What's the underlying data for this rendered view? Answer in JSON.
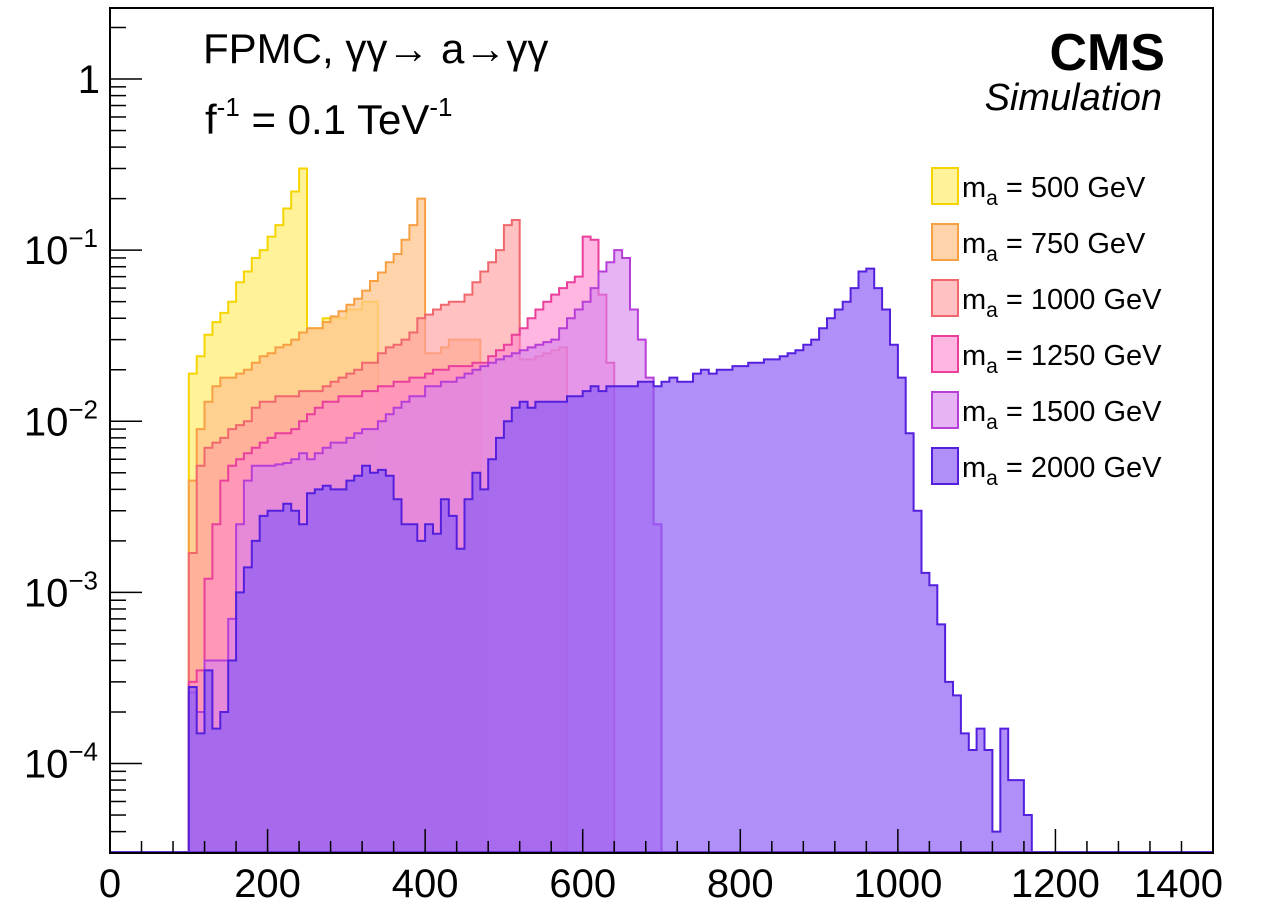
{
  "chart_data": {
    "type": "histogram",
    "title": "",
    "xlabel": "",
    "ylabel": "",
    "xlim": [
      0,
      1400
    ],
    "ylim": [
      3e-05,
      2.6
    ],
    "ylog": true,
    "grid": false,
    "legend_position": "right",
    "bin_width": 10,
    "annotation_line1": "FPMC, γγ→ a→γγ",
    "annotation_line2_base": "f",
    "annotation_line2_exp": "-1",
    "annotation_line2_mid": " = 0.1 TeV",
    "annotation_line2_exp2": "-1",
    "experiment": "CMS",
    "experiment_sub": "Simulation",
    "x_ticks": [
      "0",
      "200",
      "400",
      "600",
      "800",
      "1000",
      "1200",
      "1400"
    ],
    "y_ticks": [
      {
        "value": 1,
        "base": "1",
        "exp": ""
      },
      {
        "value": 0.1,
        "base": "10",
        "exp": "−1"
      },
      {
        "value": 0.01,
        "base": "10",
        "exp": "−2"
      },
      {
        "value": 0.001,
        "base": "10",
        "exp": "−3"
      },
      {
        "value": 0.0001,
        "base": "10",
        "exp": "−4"
      }
    ],
    "series": [
      {
        "name": "m_a = 500 GeV",
        "label_base": "m",
        "label_sub": "a",
        "label_rest": " = 500 GeV",
        "fill": "#fff086",
        "stroke": "#f5d400",
        "opacity": 0.85,
        "start": 100,
        "values": [
          0.019,
          0.024,
          0.032,
          0.038,
          0.043,
          0.05,
          0.065,
          0.075,
          0.09,
          0.1,
          0.12,
          0.14,
          0.175,
          0.22,
          0.3,
          0.035,
          0.035,
          0.04,
          0.04,
          0.04,
          0.045,
          0.045,
          0.05,
          0.05
        ]
      },
      {
        "name": "m_a = 750 GeV",
        "label_base": "m",
        "label_sub": "a",
        "label_rest": " = 750 GeV",
        "fill": "#ffc58f",
        "stroke": "#f7a043",
        "opacity": 0.75,
        "start": 100,
        "values": [
          0.0045,
          0.009,
          0.013,
          0.016,
          0.018,
          0.018,
          0.019,
          0.02,
          0.022,
          0.024,
          0.025,
          0.027,
          0.028,
          0.03,
          0.033,
          0.035,
          0.035,
          0.038,
          0.041,
          0.044,
          0.048,
          0.052,
          0.058,
          0.066,
          0.074,
          0.085,
          0.095,
          0.115,
          0.14,
          0.2,
          0.025,
          0.025,
          0.027,
          0.03,
          0.03,
          0.03,
          0.03
        ]
      },
      {
        "name": "m_a = 1000 GeV",
        "label_base": "m",
        "label_sub": "a",
        "label_rest": " = 1000 GeV",
        "fill": "#ffa0a0",
        "stroke": "#f0686e",
        "opacity": 0.65,
        "start": 100,
        "values": [
          0.0017,
          0.0055,
          0.007,
          0.0075,
          0.008,
          0.009,
          0.0095,
          0.01,
          0.012,
          0.013,
          0.013,
          0.014,
          0.014,
          0.014,
          0.015,
          0.015,
          0.015,
          0.016,
          0.017,
          0.018,
          0.019,
          0.02,
          0.022,
          0.022,
          0.025,
          0.027,
          0.028,
          0.03,
          0.033,
          0.04,
          0.042,
          0.045,
          0.048,
          0.05,
          0.05,
          0.055,
          0.065,
          0.075,
          0.085,
          0.1,
          0.14,
          0.15,
          0.023,
          0.023,
          0.024,
          0.025,
          0.026,
          0.027
        ]
      },
      {
        "name": "m_a = 1250 GeV",
        "label_base": "m",
        "label_sub": "a",
        "label_rest": " = 1250 GeV",
        "fill": "#ff85cc",
        "stroke": "#ea3f9b",
        "opacity": 0.6,
        "start": 100,
        "values": [
          0.0003,
          0.00035,
          0.0012,
          0.0025,
          0.0045,
          0.0055,
          0.006,
          0.0065,
          0.007,
          0.0075,
          0.008,
          0.0085,
          0.0085,
          0.009,
          0.01,
          0.011,
          0.012,
          0.013,
          0.013,
          0.014,
          0.014,
          0.014,
          0.015,
          0.015,
          0.016,
          0.016,
          0.017,
          0.017,
          0.018,
          0.018,
          0.019,
          0.02,
          0.02,
          0.021,
          0.021,
          0.021,
          0.022,
          0.022,
          0.024,
          0.026,
          0.028,
          0.032,
          0.035,
          0.04,
          0.045,
          0.05,
          0.055,
          0.06,
          0.065,
          0.07,
          0.12,
          0.115,
          0.055,
          0.022
        ]
      },
      {
        "name": "m_a = 1500 GeV",
        "label_base": "m",
        "label_sub": "a",
        "label_rest": " = 1500 GeV",
        "fill": "#d580ee",
        "stroke": "#b83ed8",
        "opacity": 0.6,
        "start": 100,
        "values": [
          0.00026,
          0.0002,
          0.0004,
          0.0004,
          0.0004,
          0.0007,
          0.0025,
          0.0045,
          0.0055,
          0.0055,
          0.0055,
          0.0056,
          0.0057,
          0.006,
          0.0065,
          0.006,
          0.0065,
          0.007,
          0.0075,
          0.0075,
          0.008,
          0.0085,
          0.009,
          0.009,
          0.01,
          0.011,
          0.012,
          0.013,
          0.014,
          0.014,
          0.016,
          0.016,
          0.017,
          0.017,
          0.018,
          0.019,
          0.02,
          0.021,
          0.022,
          0.023,
          0.024,
          0.025,
          0.026,
          0.027,
          0.028,
          0.029,
          0.03,
          0.035,
          0.04,
          0.045,
          0.05,
          0.06,
          0.075,
          0.085,
          0.1,
          0.09,
          0.045,
          0.03,
          0.018,
          0.0025
        ]
      },
      {
        "name": "m_a = 2000 GeV",
        "label_base": "m",
        "label_sub": "a",
        "label_rest": " = 2000 GeV",
        "fill": "#8a5cf5",
        "stroke": "#5520dd",
        "opacity": 0.68,
        "start": 100,
        "values": [
          0.00028,
          0.00015,
          0.00035,
          0.00016,
          0.0002,
          0.0004,
          0.001,
          0.0014,
          0.002,
          0.0028,
          0.003,
          0.003,
          0.0033,
          0.003,
          0.0025,
          0.0038,
          0.004,
          0.0042,
          0.004,
          0.004,
          0.0045,
          0.0048,
          0.0055,
          0.005,
          0.0052,
          0.0048,
          0.0035,
          0.0025,
          0.0025,
          0.002,
          0.0025,
          0.0022,
          0.0035,
          0.0028,
          0.0018,
          0.0035,
          0.005,
          0.004,
          0.006,
          0.008,
          0.01,
          0.012,
          0.013,
          0.012,
          0.013,
          0.013,
          0.013,
          0.013,
          0.014,
          0.014,
          0.015,
          0.016,
          0.015,
          0.016,
          0.016,
          0.016,
          0.016,
          0.017,
          0.017,
          0.016,
          0.017,
          0.018,
          0.017,
          0.017,
          0.019,
          0.02,
          0.019,
          0.02,
          0.02,
          0.021,
          0.021,
          0.022,
          0.022,
          0.023,
          0.023,
          0.024,
          0.025,
          0.026,
          0.028,
          0.03,
          0.035,
          0.04,
          0.045,
          0.05,
          0.06,
          0.075,
          0.078,
          0.06,
          0.045,
          0.028,
          0.018,
          0.0085,
          0.003,
          0.0013,
          0.0011,
          0.00065,
          0.0003,
          0.00025,
          0.00015,
          0.00012,
          0.00016,
          0.00012,
          4e-05,
          0.00016,
          8e-05,
          8e-05,
          5e-05
        ]
      }
    ]
  }
}
